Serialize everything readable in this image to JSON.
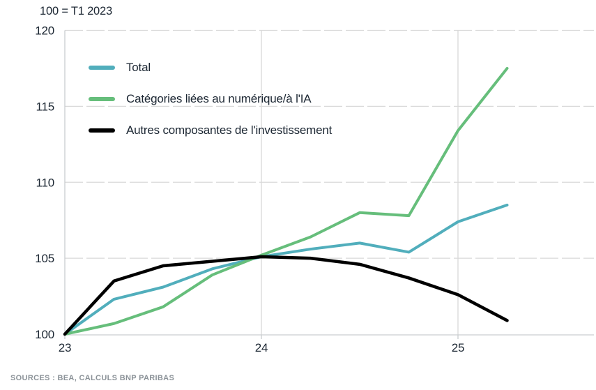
{
  "chart": {
    "title": "100 = T1 2023",
    "source": "SOURCES : BEA, CALCULS BNP PARIBAS"
  },
  "chart_data": {
    "type": "line",
    "title": "100 = T1 2023",
    "x": [
      23,
      23.25,
      23.5,
      23.75,
      24,
      24.25,
      24.5,
      24.75,
      25,
      25.25
    ],
    "x_tick_values": [
      23,
      24,
      25
    ],
    "x_tick_labels": [
      "23",
      "24",
      "25"
    ],
    "y_ticks": [
      100,
      105,
      110,
      115,
      120
    ],
    "ylim": [
      100,
      120
    ],
    "xlim": [
      23,
      25.68
    ],
    "grid": true,
    "legend_position": "inside-top-left",
    "series": [
      {
        "name": "Total",
        "color": "#51AEBC",
        "stroke_width": 4,
        "values": [
          100,
          102.3,
          103.1,
          104.3,
          105.1,
          105.6,
          106.0,
          105.4,
          107.4,
          108.5
        ]
      },
      {
        "name": "Catégories liées au numérique/à l'IA",
        "color": "#66BE7B",
        "stroke_width": 4,
        "values": [
          100,
          100.7,
          101.8,
          103.9,
          105.2,
          106.4,
          108.0,
          107.8,
          113.4,
          117.5
        ]
      },
      {
        "name": "Autres composantes de l'investissement",
        "color": "#000000",
        "stroke_width": 4.5,
        "values": [
          100,
          103.5,
          104.5,
          104.8,
          105.1,
          105.0,
          104.6,
          103.7,
          102.6,
          100.9
        ]
      }
    ],
    "colors": {
      "grid": "#D9D9D9",
      "axis": "#C9CDD0",
      "tick_text": "#1C2733",
      "source_text": "#8B9298"
    }
  }
}
